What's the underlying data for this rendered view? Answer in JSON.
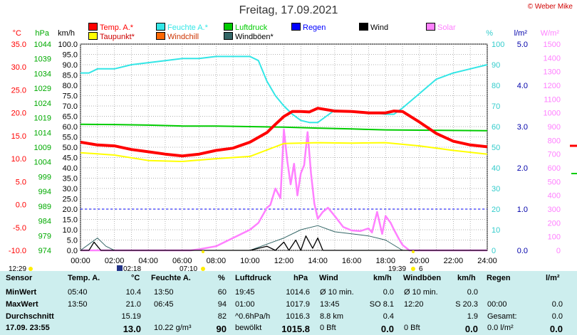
{
  "title": "Freitag, 17.09.2021",
  "copyright": "© Weber Mike",
  "legend": [
    {
      "label": "Temp. A.*",
      "color": "#ff0000"
    },
    {
      "label": "Feuchte A.*",
      "color": "#33e6e6"
    },
    {
      "label": "Luftdruck",
      "color": "#00cc00"
    },
    {
      "label": "Regen",
      "color": "#0000ff"
    },
    {
      "label": "Wind",
      "color": "#000000"
    },
    {
      "label": "Solar",
      "color": "#ff80ff"
    },
    {
      "label": "Taupunkt*",
      "color": "#ffff00"
    },
    {
      "label": "Windchill",
      "color": "#ff6600"
    },
    {
      "label": "Windböen*",
      "color": "#336666"
    }
  ],
  "axis_units": {
    "temp": "°C",
    "pressure": "hPa",
    "wind": "km/h",
    "humidity": "%",
    "rain": "l/m²",
    "solar": "W/m²"
  },
  "axis_ticks": {
    "temp": [
      "35.0",
      "30.0",
      "25.0",
      "20.0",
      "15.0",
      "10.0",
      "5.0",
      "0.0",
      "-5.0",
      "-10.0"
    ],
    "pressure": [
      "1044",
      "1039",
      "1034",
      "1029",
      "1024",
      "1019",
      "1014",
      "1009",
      "1004",
      "999",
      "994",
      "989",
      "984",
      "979",
      "974"
    ],
    "wind": [
      "100.0",
      "95.0",
      "90.0",
      "85.0",
      "80.0",
      "75.0",
      "70.0",
      "65.0",
      "60.0",
      "55.0",
      "50.0",
      "45.0",
      "40.0",
      "35.0",
      "30.0",
      "25.0",
      "20.0",
      "15.0",
      "10.0",
      "5.0",
      "0.0"
    ],
    "humidity": [
      "100",
      "90",
      "80",
      "70",
      "60",
      "50",
      "40",
      "30",
      "20",
      "10",
      "0"
    ],
    "rain": [
      "5.0",
      "4.0",
      "3.0",
      "2.0",
      "1.0",
      "0.0"
    ],
    "solar": [
      "1500",
      "1400",
      "1300",
      "1200",
      "1100",
      "1000",
      "900",
      "800",
      "700",
      "600",
      "500",
      "400",
      "300",
      "200",
      "100",
      "0"
    ],
    "time": [
      "00:00",
      "02:00",
      "04:00",
      "06:00",
      "08:00",
      "10:00",
      "12:00",
      "14:00",
      "16:00",
      "18:00",
      "20:00",
      "22:00",
      "24:00"
    ]
  },
  "sun_markers": {
    "sunrise_label": "07:10",
    "sunset_label": "19:39",
    "moon_label": "02:18",
    "left_label": "12:29",
    "right_label": "6"
  },
  "chart_data": {
    "type": "line",
    "title": "Freitag, 17.09.2021",
    "x_unit": "hour of day",
    "xlim": [
      0,
      24
    ],
    "series": [
      {
        "name": "Temp. A.*",
        "unit": "°C",
        "axis": "temp",
        "color": "#ff0000",
        "x": [
          0,
          1,
          2,
          3,
          4,
          5,
          6,
          7,
          8,
          9,
          10,
          11,
          11.5,
          12,
          12.5,
          13,
          13.5,
          14,
          15,
          16,
          17,
          18,
          18.5,
          19,
          20,
          21,
          22,
          23,
          24
        ],
        "y": [
          13.6,
          13,
          12.8,
          12,
          11.5,
          11,
          10.6,
          11,
          11.8,
          12.3,
          13.6,
          15.7,
          17.5,
          19.2,
          20.3,
          20.3,
          20.2,
          21,
          20.4,
          20.3,
          20,
          20,
          20.4,
          20.3,
          18,
          15.5,
          13.8,
          13,
          12.6
        ]
      },
      {
        "name": "Feuchte A.*",
        "unit": "%",
        "axis": "humidity",
        "color": "#33e6e6",
        "x": [
          0,
          0.5,
          1,
          2,
          3,
          4,
          5,
          6,
          7,
          8,
          9,
          10,
          10.5,
          11,
          11.5,
          12,
          12.5,
          13,
          13.5,
          14,
          14.5,
          15,
          16,
          17,
          18,
          18.5,
          19,
          20,
          21,
          22,
          23,
          24
        ],
        "y": [
          86,
          86,
          88,
          88,
          90,
          91,
          92,
          93,
          93,
          94,
          94,
          94,
          92,
          82,
          75,
          70,
          66,
          63,
          62,
          62,
          65,
          68,
          67,
          67,
          66,
          66,
          69,
          76,
          83,
          86,
          88,
          90
        ]
      },
      {
        "name": "Luftdruck",
        "unit": "hPa",
        "axis": "pressure",
        "color": "#00cc00",
        "x": [
          0,
          2,
          4,
          6,
          8,
          10,
          12,
          14,
          16,
          18,
          20,
          22,
          24
        ],
        "y": [
          1016.8,
          1016.7,
          1016.5,
          1016.2,
          1016.2,
          1016,
          1015.8,
          1015.5,
          1015.2,
          1014.9,
          1014.8,
          1014.7,
          1014.6
        ]
      },
      {
        "name": "Taupunkt*",
        "unit": "°C",
        "axis": "temp",
        "color": "#ffff00",
        "x": [
          0,
          2,
          4,
          6,
          8,
          10,
          12,
          14,
          16,
          18,
          20,
          22,
          24
        ],
        "y": [
          11.3,
          10.8,
          9.6,
          9.4,
          10,
          10.5,
          13.3,
          13.5,
          13.4,
          13.5,
          12.8,
          11.8,
          11
        ]
      },
      {
        "name": "Solar",
        "unit": "W/m²",
        "axis": "solar",
        "color": "#ff80ff",
        "x": [
          0,
          6.5,
          7,
          8,
          9,
          10,
          10.5,
          11,
          11.2,
          11.5,
          11.8,
          12,
          12.2,
          12.4,
          12.6,
          12.8,
          13,
          13.2,
          13.4,
          13.6,
          13.8,
          14,
          14.3,
          14.6,
          15,
          15.5,
          16,
          16.5,
          17,
          17.2,
          17.5,
          17.8,
          18,
          18.3,
          18.5,
          18.8,
          19,
          19.4,
          24
        ],
        "y": [
          0,
          0,
          8,
          30,
          90,
          150,
          200,
          310,
          330,
          450,
          380,
          880,
          650,
          480,
          630,
          400,
          560,
          620,
          860,
          560,
          340,
          230,
          280,
          310,
          250,
          170,
          145,
          140,
          160,
          130,
          280,
          120,
          250,
          200,
          150,
          80,
          40,
          0,
          0
        ]
      },
      {
        "name": "Wind",
        "unit": "km/h",
        "axis": "wind",
        "color": "#000000",
        "x": [
          0,
          0.5,
          0.8,
          1.2,
          1.5,
          10,
          11,
          11.5,
          12,
          12.3,
          12.7,
          13,
          13.3,
          13.7,
          14,
          14.3,
          14.6,
          15,
          24
        ],
        "y": [
          0,
          0,
          4,
          0,
          0,
          0,
          2,
          0,
          4,
          0,
          5,
          0,
          7,
          1,
          6,
          0,
          0,
          0,
          0
        ]
      },
      {
        "name": "Windböen*",
        "unit": "km/h",
        "axis": "wind",
        "color": "#336666",
        "x": [
          0,
          0.5,
          1,
          1.5,
          2,
          10,
          11,
          12,
          13,
          14,
          15,
          16,
          17,
          18,
          19,
          24
        ],
        "y": [
          0,
          3,
          6,
          2,
          0,
          0,
          3,
          6,
          10,
          12,
          9,
          8,
          7,
          5,
          0,
          0
        ]
      }
    ]
  },
  "table": {
    "headers": {
      "sensor": "Sensor",
      "temp": "Temp. A.",
      "temp_unit": "°C",
      "hum": "Feuchte A.",
      "hum_unit": "%",
      "press": "Luftdruck",
      "press_unit": "hPa",
      "wind": "Wind",
      "wind_unit": "km/h",
      "gust": "Windböen",
      "gust_unit": "km/h",
      "rain": "Regen",
      "rain_unit": "l/m²"
    },
    "rows": [
      {
        "label": "MinWert",
        "temp_time": "05:40",
        "temp_val": "10.4",
        "hum_time": "13:50",
        "hum_val": "60",
        "press_time": "19:45",
        "press_val": "1014.6",
        "wind_time": "Ø 10 min.",
        "wind_val": "0.0",
        "gust_time": "Ø 10 min.",
        "gust_val": "0.0",
        "rain_time": "",
        "rain_val": ""
      },
      {
        "label": "MaxWert",
        "temp_time": "13:50",
        "temp_val": "21.0",
        "hum_time": "06:45",
        "hum_val": "94",
        "press_time": "01:00",
        "press_val": "1017.9",
        "wind_time": "13:45",
        "wind_val": "SO 8.1",
        "gust_time": "12:20",
        "gust_val": "S 20.3",
        "rain_time": "00:00",
        "rain_val": "0.0"
      },
      {
        "label": "Durchschnitt",
        "temp_time": "",
        "temp_val": "15.19",
        "hum_time": "",
        "hum_val": "82",
        "press_time": "^0.6hPa/h",
        "press_val": "1016.3",
        "wind_time": "8.8 km",
        "wind_val": "0.4",
        "gust_time": "",
        "gust_val": "1.9",
        "rain_time": "Gesamt:",
        "rain_val": "0.0"
      },
      {
        "label": "17.09. 23:55",
        "temp_time": "",
        "temp_val": "13.0",
        "hum_time": "10.22 g/m³",
        "hum_val": "90",
        "press_time": "bewölkt",
        "press_val": "1015.8",
        "wind_time": "0 Bft",
        "wind_val": "0.0",
        "gust_time": "0 Bft",
        "gust_val": "0.0",
        "rain_time": "0.0 l/m²",
        "rain_val": "0.0"
      }
    ]
  }
}
